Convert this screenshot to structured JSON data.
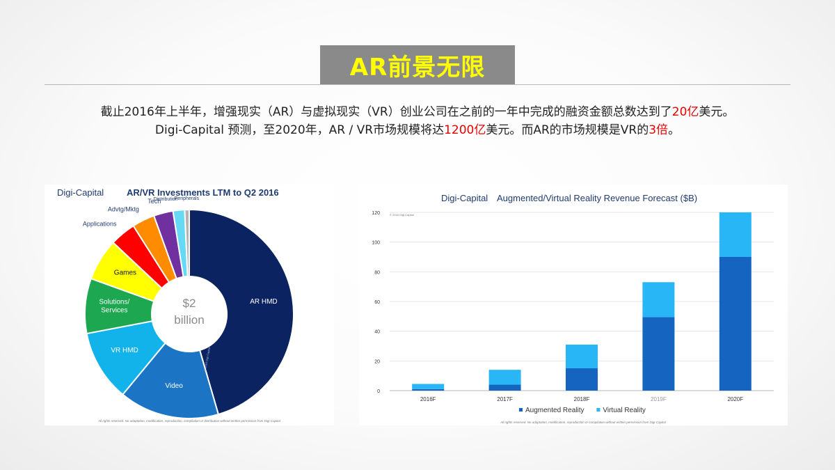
{
  "slide": {
    "title": "AR前景无限",
    "line1": {
      "pre": "截止2016年上半年，增强现实（AR）与虚拟现实（VR）创业公司在之前的一年中完成的融资金额总数达到了",
      "hl": "20亿",
      "post": "美元。"
    },
    "line2": {
      "pre": "Digi-Capital 预测，至2020年，AR / VR市场规模将达",
      "hl1": "1200亿",
      "mid": "美元。而AR的市场规模是VR的",
      "hl2": "3倍",
      "post": "。"
    }
  },
  "chart_data": [
    {
      "type": "pie",
      "brand": "Digi-Capital",
      "title": "AR/VR Investments LTM to Q2 2016",
      "center_label": [
        "$2",
        "billion"
      ],
      "copyright": "© 2016 Digi-Capital",
      "footnote": "All rights reserved. No adaptation, modification, reproduction, compilation or distribution without written permission from Digi-Capital",
      "slices": [
        {
          "label": "AR HMD",
          "value": 45.5,
          "color": "#0b2461"
        },
        {
          "label": "Video",
          "value": 15.5,
          "color": "#1b74c4"
        },
        {
          "label": "VR HMD",
          "value": 11.0,
          "color": "#12b2ea"
        },
        {
          "label": "Solutions/\nServices",
          "value": 8.5,
          "color": "#1ca750"
        },
        {
          "label": "Games",
          "value": 6.5,
          "color": "#ffff00"
        },
        {
          "label": "Applications",
          "value": 4.0,
          "color": "#ff0000"
        },
        {
          "label": "Advtg/Mktg",
          "value": 3.5,
          "color": "#ff8c00"
        },
        {
          "label": "Tech",
          "value": 3.0,
          "color": "#7030a0"
        },
        {
          "label": "Distribution",
          "value": 1.8,
          "color": "#66d9f5"
        },
        {
          "label": "Peripherals",
          "value": 0.7,
          "color": "#b4b4b4"
        }
      ]
    },
    {
      "type": "bar",
      "stacked": true,
      "brand": "Digi-Capital",
      "title": "Augmented/Virtual Reality Revenue Forecast ($B)",
      "copyright": "© 2016 Digi-Capital",
      "footnote": "All rights reserved. No adaptation, modification, reproduction or compilation without written permission from Digi-Capital",
      "categories": [
        "2016F",
        "2017F",
        "2018F",
        "2019F",
        "2020F"
      ],
      "series": [
        {
          "name": "Augmented Reality",
          "color": "#1565c0",
          "values": [
            1,
            4,
            15,
            49.5,
            90
          ]
        },
        {
          "name": "Virtual Reality",
          "color": "#29b6f6",
          "values": [
            3.5,
            10,
            16,
            23.5,
            30
          ]
        }
      ],
      "ylim": [
        0,
        120
      ],
      "yticks": [
        0,
        20,
        40,
        60,
        80,
        100,
        120
      ],
      "grid": true,
      "legend": "bottom"
    }
  ]
}
